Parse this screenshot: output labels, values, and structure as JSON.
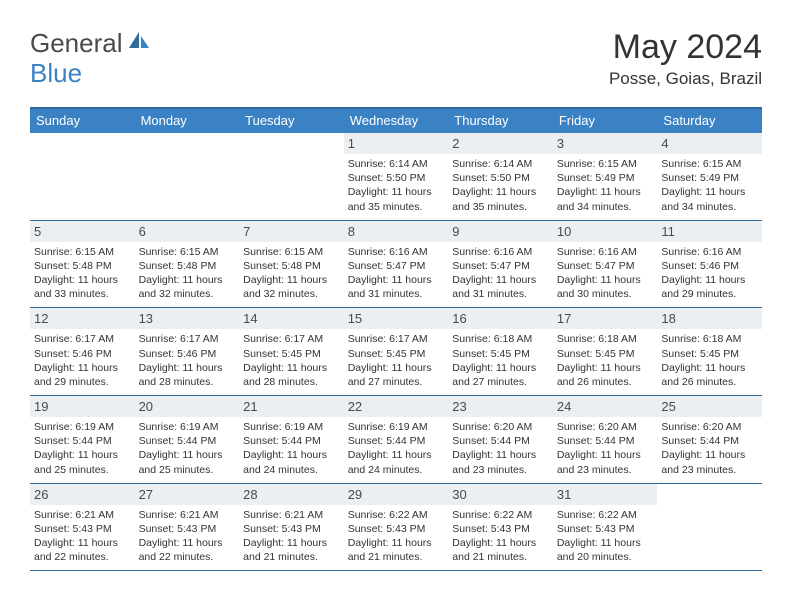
{
  "logo": {
    "general": "General",
    "blue": "Blue"
  },
  "title": "May 2024",
  "location": "Posse, Goias, Brazil",
  "colors": {
    "header_bg": "#3b82c4",
    "header_border": "#2c6aa0",
    "daynum_bg": "#eceff1",
    "text": "#333333",
    "logo_blue": "#3b82c4",
    "logo_gray": "#4a4a4a"
  },
  "weekdays": [
    "Sunday",
    "Monday",
    "Tuesday",
    "Wednesday",
    "Thursday",
    "Friday",
    "Saturday"
  ],
  "weeks": [
    [
      null,
      null,
      null,
      {
        "n": "1",
        "sr": "6:14 AM",
        "ss": "5:50 PM",
        "dl": "11 hours and 35 minutes."
      },
      {
        "n": "2",
        "sr": "6:14 AM",
        "ss": "5:50 PM",
        "dl": "11 hours and 35 minutes."
      },
      {
        "n": "3",
        "sr": "6:15 AM",
        "ss": "5:49 PM",
        "dl": "11 hours and 34 minutes."
      },
      {
        "n": "4",
        "sr": "6:15 AM",
        "ss": "5:49 PM",
        "dl": "11 hours and 34 minutes."
      }
    ],
    [
      {
        "n": "5",
        "sr": "6:15 AM",
        "ss": "5:48 PM",
        "dl": "11 hours and 33 minutes."
      },
      {
        "n": "6",
        "sr": "6:15 AM",
        "ss": "5:48 PM",
        "dl": "11 hours and 32 minutes."
      },
      {
        "n": "7",
        "sr": "6:15 AM",
        "ss": "5:48 PM",
        "dl": "11 hours and 32 minutes."
      },
      {
        "n": "8",
        "sr": "6:16 AM",
        "ss": "5:47 PM",
        "dl": "11 hours and 31 minutes."
      },
      {
        "n": "9",
        "sr": "6:16 AM",
        "ss": "5:47 PM",
        "dl": "11 hours and 31 minutes."
      },
      {
        "n": "10",
        "sr": "6:16 AM",
        "ss": "5:47 PM",
        "dl": "11 hours and 30 minutes."
      },
      {
        "n": "11",
        "sr": "6:16 AM",
        "ss": "5:46 PM",
        "dl": "11 hours and 29 minutes."
      }
    ],
    [
      {
        "n": "12",
        "sr": "6:17 AM",
        "ss": "5:46 PM",
        "dl": "11 hours and 29 minutes."
      },
      {
        "n": "13",
        "sr": "6:17 AM",
        "ss": "5:46 PM",
        "dl": "11 hours and 28 minutes."
      },
      {
        "n": "14",
        "sr": "6:17 AM",
        "ss": "5:45 PM",
        "dl": "11 hours and 28 minutes."
      },
      {
        "n": "15",
        "sr": "6:17 AM",
        "ss": "5:45 PM",
        "dl": "11 hours and 27 minutes."
      },
      {
        "n": "16",
        "sr": "6:18 AM",
        "ss": "5:45 PM",
        "dl": "11 hours and 27 minutes."
      },
      {
        "n": "17",
        "sr": "6:18 AM",
        "ss": "5:45 PM",
        "dl": "11 hours and 26 minutes."
      },
      {
        "n": "18",
        "sr": "6:18 AM",
        "ss": "5:45 PM",
        "dl": "11 hours and 26 minutes."
      }
    ],
    [
      {
        "n": "19",
        "sr": "6:19 AM",
        "ss": "5:44 PM",
        "dl": "11 hours and 25 minutes."
      },
      {
        "n": "20",
        "sr": "6:19 AM",
        "ss": "5:44 PM",
        "dl": "11 hours and 25 minutes."
      },
      {
        "n": "21",
        "sr": "6:19 AM",
        "ss": "5:44 PM",
        "dl": "11 hours and 24 minutes."
      },
      {
        "n": "22",
        "sr": "6:19 AM",
        "ss": "5:44 PM",
        "dl": "11 hours and 24 minutes."
      },
      {
        "n": "23",
        "sr": "6:20 AM",
        "ss": "5:44 PM",
        "dl": "11 hours and 23 minutes."
      },
      {
        "n": "24",
        "sr": "6:20 AM",
        "ss": "5:44 PM",
        "dl": "11 hours and 23 minutes."
      },
      {
        "n": "25",
        "sr": "6:20 AM",
        "ss": "5:44 PM",
        "dl": "11 hours and 23 minutes."
      }
    ],
    [
      {
        "n": "26",
        "sr": "6:21 AM",
        "ss": "5:43 PM",
        "dl": "11 hours and 22 minutes."
      },
      {
        "n": "27",
        "sr": "6:21 AM",
        "ss": "5:43 PM",
        "dl": "11 hours and 22 minutes."
      },
      {
        "n": "28",
        "sr": "6:21 AM",
        "ss": "5:43 PM",
        "dl": "11 hours and 21 minutes."
      },
      {
        "n": "29",
        "sr": "6:22 AM",
        "ss": "5:43 PM",
        "dl": "11 hours and 21 minutes."
      },
      {
        "n": "30",
        "sr": "6:22 AM",
        "ss": "5:43 PM",
        "dl": "11 hours and 21 minutes."
      },
      {
        "n": "31",
        "sr": "6:22 AM",
        "ss": "5:43 PM",
        "dl": "11 hours and 20 minutes."
      },
      null
    ]
  ],
  "labels": {
    "sunrise": "Sunrise:",
    "sunset": "Sunset:",
    "daylight": "Daylight:"
  }
}
